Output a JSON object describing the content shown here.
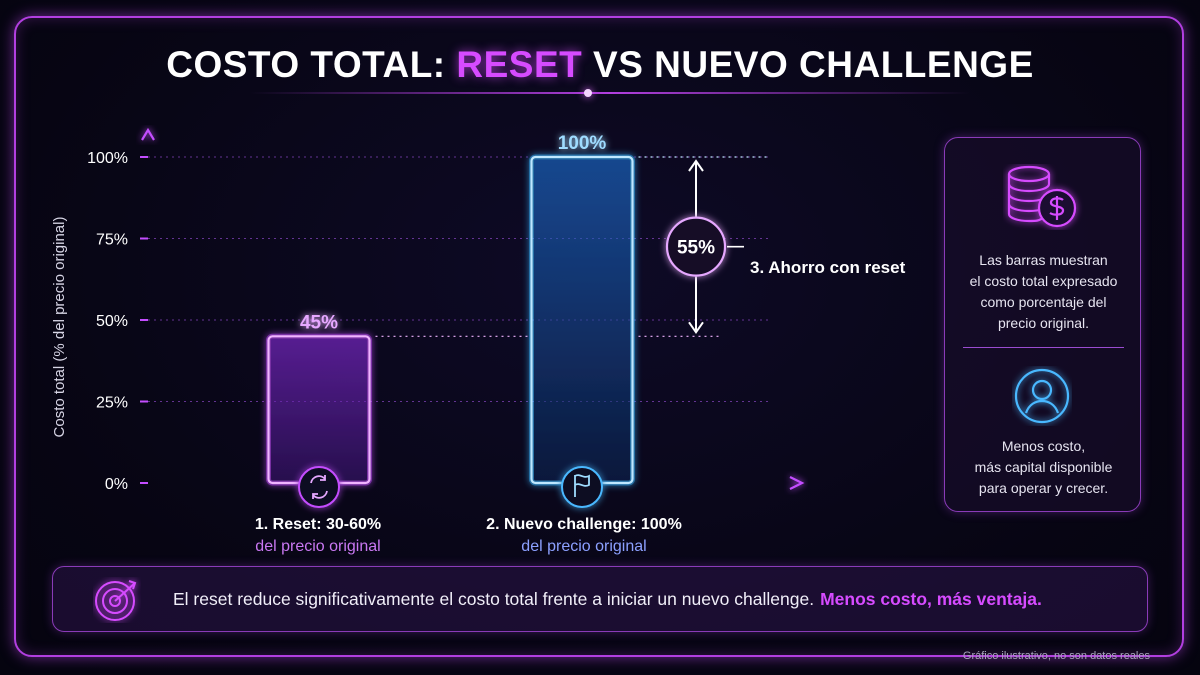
{
  "title": {
    "part1": "COSTO TOTAL:",
    "accent": "RESET",
    "part2": "VS NUEVO CHALLENGE"
  },
  "chart_data": {
    "type": "bar",
    "categories": [
      "1. Reset: 30-60%",
      "2. Nuevo challenge: 100%"
    ],
    "category_sublabels": [
      "del precio original",
      "del precio original"
    ],
    "values": [
      45,
      100
    ],
    "value_labels": [
      "45%",
      "100%"
    ],
    "ylabel": "Costo total (% del precio original)",
    "yticks": [
      0,
      25,
      50,
      75,
      100
    ],
    "ytick_labels": [
      "0%",
      "25%",
      "50%",
      "75%",
      "100%"
    ],
    "ylim": [
      0,
      100
    ],
    "grid": true,
    "bar_colors": [
      "#c44dff",
      "#38b6ff"
    ],
    "annotation": {
      "value_label": "55%",
      "label": "3. Ahorro con reset"
    }
  },
  "side_panel": {
    "text1": [
      "Las barras muestran",
      "el costo total expresado",
      "como porcentaje del",
      "precio original."
    ],
    "text2": [
      "Menos costo,",
      "más capital disponible",
      "para operar y crecer."
    ],
    "icon1": "coins-dollar-icon",
    "icon2": "user-icon"
  },
  "bottom": {
    "text": "El reset reduce significativamente el costo total frente a iniciar un nuevo challenge.",
    "highlight": "Menos costo, más ventaja.",
    "icon": "target-icon"
  },
  "footnote": "Gráfico ilustrativo, no son datos reales",
  "colors": {
    "accent": "#d64bff",
    "purple": "#c44dff",
    "blue": "#38b6ff",
    "background": "#070513"
  }
}
